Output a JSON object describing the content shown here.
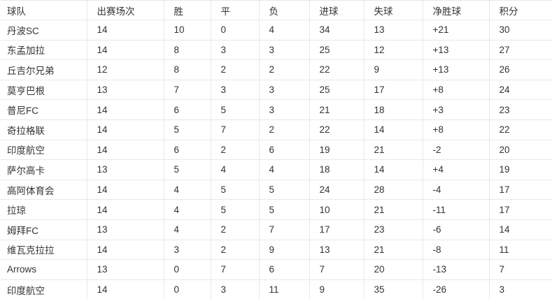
{
  "chart_data": {
    "type": "table",
    "columns": [
      "球队",
      "出赛场次",
      "胜",
      "平",
      "负",
      "进球",
      "失球",
      "净胜球",
      "积分"
    ],
    "column_keys": [
      "team",
      "matches-played",
      "wins",
      "draws",
      "losses",
      "goals-for",
      "goals-against",
      "goal-difference",
      "points"
    ],
    "rows": [
      [
        "丹波SC",
        "14",
        "10",
        "0",
        "4",
        "34",
        "13",
        "+21",
        "30"
      ],
      [
        "东孟加拉",
        "14",
        "8",
        "3",
        "3",
        "25",
        "12",
        "+13",
        "27"
      ],
      [
        "丘吉尔兄弟",
        "12",
        "8",
        "2",
        "2",
        "22",
        "9",
        "+13",
        "26"
      ],
      [
        "莫亨巴根",
        "13",
        "7",
        "3",
        "3",
        "25",
        "17",
        "+8",
        "24"
      ],
      [
        "普尼FC",
        "14",
        "6",
        "5",
        "3",
        "21",
        "18",
        "+3",
        "23"
      ],
      [
        "奇拉格联",
        "14",
        "5",
        "7",
        "2",
        "22",
        "14",
        "+8",
        "22"
      ],
      [
        "印度航空",
        "14",
        "6",
        "2",
        "6",
        "19",
        "21",
        "-2",
        "20"
      ],
      [
        "萨尔高卡",
        "13",
        "5",
        "4",
        "4",
        "18",
        "14",
        "+4",
        "19"
      ],
      [
        "高阿体育会",
        "14",
        "4",
        "5",
        "5",
        "24",
        "28",
        "-4",
        "17"
      ],
      [
        "拉琼",
        "14",
        "4",
        "5",
        "5",
        "10",
        "21",
        "-11",
        "17"
      ],
      [
        "姆拜FC",
        "13",
        "4",
        "2",
        "7",
        "17",
        "23",
        "-6",
        "14"
      ],
      [
        "维瓦克拉拉",
        "14",
        "3",
        "2",
        "9",
        "13",
        "21",
        "-8",
        "11"
      ],
      [
        "Arrows",
        "13",
        "0",
        "7",
        "6",
        "7",
        "20",
        "-13",
        "7"
      ],
      [
        "印度航空",
        "14",
        "0",
        "3",
        "11",
        "9",
        "35",
        "-26",
        "3"
      ]
    ],
    "colors": {
      "text": "#333333",
      "border": "#e8e8e8",
      "background": "#ffffff"
    },
    "layout": {
      "grid": true,
      "header_bold": false
    }
  }
}
